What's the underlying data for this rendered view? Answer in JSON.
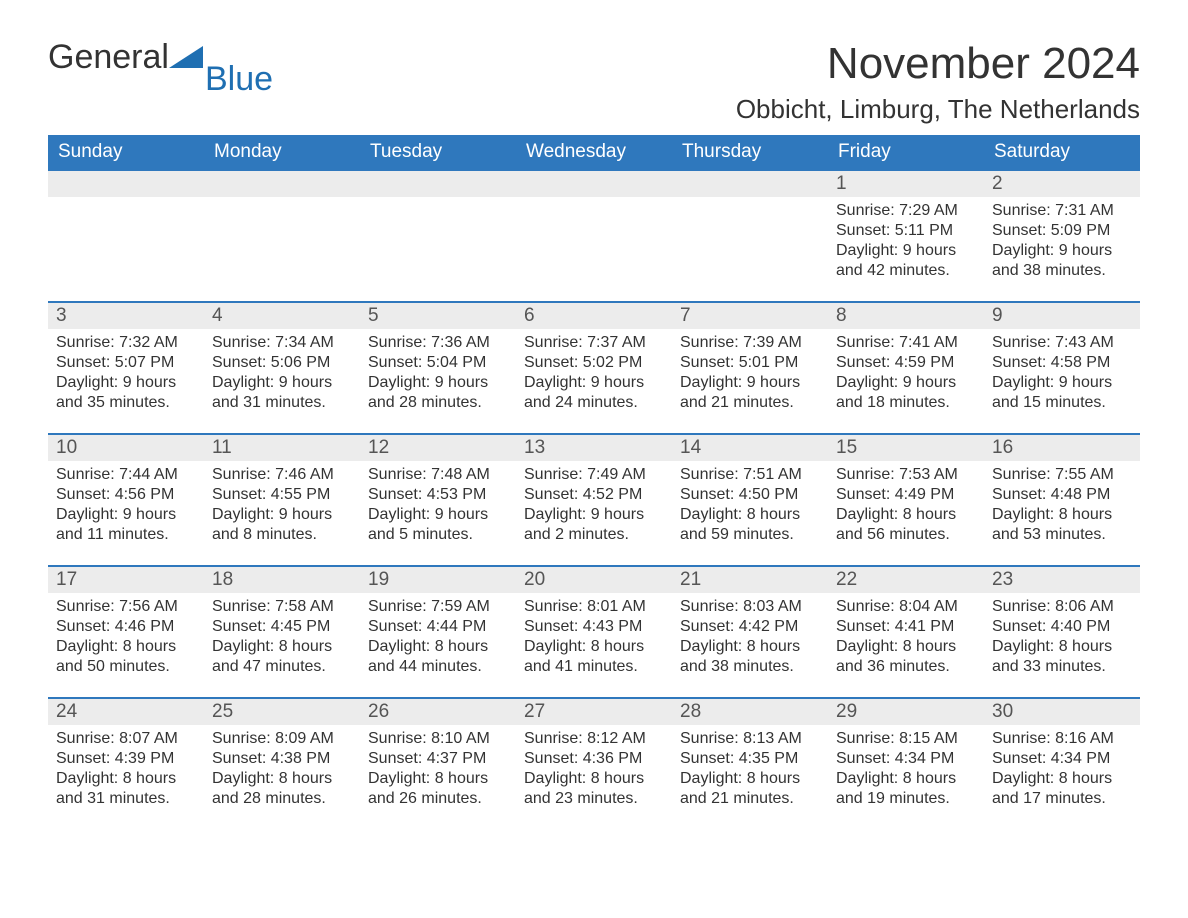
{
  "logo": {
    "text1": "General",
    "text2": "Blue",
    "triangle_color": "#1f6fb2"
  },
  "title": "November 2024",
  "location": "Obbicht, Limburg, The Netherlands",
  "colors": {
    "header_bg": "#2f78bd",
    "header_text": "#ffffff",
    "daynum_bg": "#ececec",
    "week_border": "#2f78bd",
    "body_text": "#333333"
  },
  "day_headers": [
    "Sunday",
    "Monday",
    "Tuesday",
    "Wednesday",
    "Thursday",
    "Friday",
    "Saturday"
  ],
  "weeks": [
    [
      {
        "n": "",
        "sunrise": "",
        "sunset": "",
        "daylight": ""
      },
      {
        "n": "",
        "sunrise": "",
        "sunset": "",
        "daylight": ""
      },
      {
        "n": "",
        "sunrise": "",
        "sunset": "",
        "daylight": ""
      },
      {
        "n": "",
        "sunrise": "",
        "sunset": "",
        "daylight": ""
      },
      {
        "n": "",
        "sunrise": "",
        "sunset": "",
        "daylight": ""
      },
      {
        "n": "1",
        "sunrise": "Sunrise: 7:29 AM",
        "sunset": "Sunset: 5:11 PM",
        "daylight": "Daylight: 9 hours and 42 minutes."
      },
      {
        "n": "2",
        "sunrise": "Sunrise: 7:31 AM",
        "sunset": "Sunset: 5:09 PM",
        "daylight": "Daylight: 9 hours and 38 minutes."
      }
    ],
    [
      {
        "n": "3",
        "sunrise": "Sunrise: 7:32 AM",
        "sunset": "Sunset: 5:07 PM",
        "daylight": "Daylight: 9 hours and 35 minutes."
      },
      {
        "n": "4",
        "sunrise": "Sunrise: 7:34 AM",
        "sunset": "Sunset: 5:06 PM",
        "daylight": "Daylight: 9 hours and 31 minutes."
      },
      {
        "n": "5",
        "sunrise": "Sunrise: 7:36 AM",
        "sunset": "Sunset: 5:04 PM",
        "daylight": "Daylight: 9 hours and 28 minutes."
      },
      {
        "n": "6",
        "sunrise": "Sunrise: 7:37 AM",
        "sunset": "Sunset: 5:02 PM",
        "daylight": "Daylight: 9 hours and 24 minutes."
      },
      {
        "n": "7",
        "sunrise": "Sunrise: 7:39 AM",
        "sunset": "Sunset: 5:01 PM",
        "daylight": "Daylight: 9 hours and 21 minutes."
      },
      {
        "n": "8",
        "sunrise": "Sunrise: 7:41 AM",
        "sunset": "Sunset: 4:59 PM",
        "daylight": "Daylight: 9 hours and 18 minutes."
      },
      {
        "n": "9",
        "sunrise": "Sunrise: 7:43 AM",
        "sunset": "Sunset: 4:58 PM",
        "daylight": "Daylight: 9 hours and 15 minutes."
      }
    ],
    [
      {
        "n": "10",
        "sunrise": "Sunrise: 7:44 AM",
        "sunset": "Sunset: 4:56 PM",
        "daylight": "Daylight: 9 hours and 11 minutes."
      },
      {
        "n": "11",
        "sunrise": "Sunrise: 7:46 AM",
        "sunset": "Sunset: 4:55 PM",
        "daylight": "Daylight: 9 hours and 8 minutes."
      },
      {
        "n": "12",
        "sunrise": "Sunrise: 7:48 AM",
        "sunset": "Sunset: 4:53 PM",
        "daylight": "Daylight: 9 hours and 5 minutes."
      },
      {
        "n": "13",
        "sunrise": "Sunrise: 7:49 AM",
        "sunset": "Sunset: 4:52 PM",
        "daylight": "Daylight: 9 hours and 2 minutes."
      },
      {
        "n": "14",
        "sunrise": "Sunrise: 7:51 AM",
        "sunset": "Sunset: 4:50 PM",
        "daylight": "Daylight: 8 hours and 59 minutes."
      },
      {
        "n": "15",
        "sunrise": "Sunrise: 7:53 AM",
        "sunset": "Sunset: 4:49 PM",
        "daylight": "Daylight: 8 hours and 56 minutes."
      },
      {
        "n": "16",
        "sunrise": "Sunrise: 7:55 AM",
        "sunset": "Sunset: 4:48 PM",
        "daylight": "Daylight: 8 hours and 53 minutes."
      }
    ],
    [
      {
        "n": "17",
        "sunrise": "Sunrise: 7:56 AM",
        "sunset": "Sunset: 4:46 PM",
        "daylight": "Daylight: 8 hours and 50 minutes."
      },
      {
        "n": "18",
        "sunrise": "Sunrise: 7:58 AM",
        "sunset": "Sunset: 4:45 PM",
        "daylight": "Daylight: 8 hours and 47 minutes."
      },
      {
        "n": "19",
        "sunrise": "Sunrise: 7:59 AM",
        "sunset": "Sunset: 4:44 PM",
        "daylight": "Daylight: 8 hours and 44 minutes."
      },
      {
        "n": "20",
        "sunrise": "Sunrise: 8:01 AM",
        "sunset": "Sunset: 4:43 PM",
        "daylight": "Daylight: 8 hours and 41 minutes."
      },
      {
        "n": "21",
        "sunrise": "Sunrise: 8:03 AM",
        "sunset": "Sunset: 4:42 PM",
        "daylight": "Daylight: 8 hours and 38 minutes."
      },
      {
        "n": "22",
        "sunrise": "Sunrise: 8:04 AM",
        "sunset": "Sunset: 4:41 PM",
        "daylight": "Daylight: 8 hours and 36 minutes."
      },
      {
        "n": "23",
        "sunrise": "Sunrise: 8:06 AM",
        "sunset": "Sunset: 4:40 PM",
        "daylight": "Daylight: 8 hours and 33 minutes."
      }
    ],
    [
      {
        "n": "24",
        "sunrise": "Sunrise: 8:07 AM",
        "sunset": "Sunset: 4:39 PM",
        "daylight": "Daylight: 8 hours and 31 minutes."
      },
      {
        "n": "25",
        "sunrise": "Sunrise: 8:09 AM",
        "sunset": "Sunset: 4:38 PM",
        "daylight": "Daylight: 8 hours and 28 minutes."
      },
      {
        "n": "26",
        "sunrise": "Sunrise: 8:10 AM",
        "sunset": "Sunset: 4:37 PM",
        "daylight": "Daylight: 8 hours and 26 minutes."
      },
      {
        "n": "27",
        "sunrise": "Sunrise: 8:12 AM",
        "sunset": "Sunset: 4:36 PM",
        "daylight": "Daylight: 8 hours and 23 minutes."
      },
      {
        "n": "28",
        "sunrise": "Sunrise: 8:13 AM",
        "sunset": "Sunset: 4:35 PM",
        "daylight": "Daylight: 8 hours and 21 minutes."
      },
      {
        "n": "29",
        "sunrise": "Sunrise: 8:15 AM",
        "sunset": "Sunset: 4:34 PM",
        "daylight": "Daylight: 8 hours and 19 minutes."
      },
      {
        "n": "30",
        "sunrise": "Sunrise: 8:16 AM",
        "sunset": "Sunset: 4:34 PM",
        "daylight": "Daylight: 8 hours and 17 minutes."
      }
    ]
  ]
}
